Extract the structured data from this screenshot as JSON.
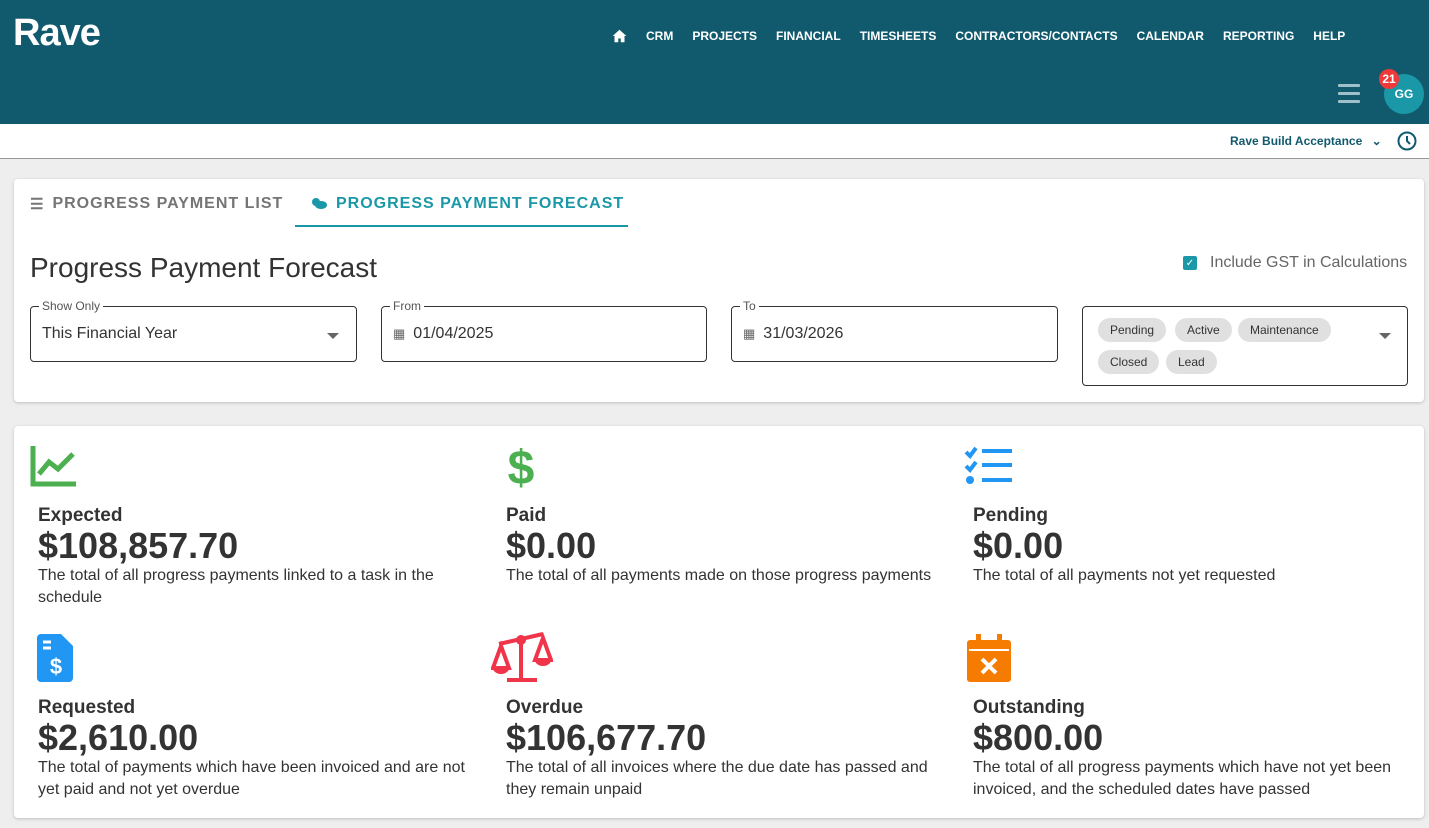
{
  "app": {
    "logo": "Rave"
  },
  "nav": {
    "items": [
      "CRM",
      "PROJECTS",
      "FINANCIAL",
      "TIMESHEETS",
      "CONTRACTORS/CONTACTS",
      "CALENDAR",
      "REPORTING",
      "HELP"
    ]
  },
  "user": {
    "initials": "GG",
    "notifications": "21"
  },
  "company": {
    "name": "Rave Build Acceptance"
  },
  "tabs": [
    {
      "label": "PROGRESS PAYMENT LIST",
      "active": false
    },
    {
      "label": "PROGRESS PAYMENT FORECAST",
      "active": true
    }
  ],
  "page": {
    "title": "Progress Payment Forecast",
    "gst_label": "Include GST in Calculations",
    "gst_checked": true
  },
  "filters": {
    "show_only": {
      "label": "Show Only",
      "value": "This Financial Year"
    },
    "from": {
      "label": "From",
      "value": "01/04/2025"
    },
    "to": {
      "label": "To",
      "value": "31/03/2026"
    },
    "statuses": [
      "Pending",
      "Active",
      "Maintenance",
      "Closed",
      "Lead"
    ]
  },
  "colors": {
    "header": "#115a6e",
    "accent": "#1b98a8",
    "green": "#4caf50",
    "blue": "#2196f3",
    "red": "#f0344a",
    "orange": "#f57c00"
  },
  "stats": [
    {
      "title": "Expected",
      "value": "$108,857.70",
      "desc": "The total of all progress payments linked to a task in the schedule",
      "icon": "chart-line-icon"
    },
    {
      "title": "Paid",
      "value": "$0.00",
      "desc": "The total of all payments made on those progress payments",
      "icon": "dollar-icon"
    },
    {
      "title": "Pending",
      "value": "$0.00",
      "desc": "The total of all payments not yet requested",
      "icon": "checklist-icon"
    },
    {
      "title": "Requested",
      "value": "$2,610.00",
      "desc": "The total of payments which have been invoiced and are not yet paid and not yet overdue",
      "icon": "invoice-dollar-icon"
    },
    {
      "title": "Overdue",
      "value": "$106,677.70",
      "desc": "The total of all invoices where the due date has passed and they remain unpaid",
      "icon": "scale-icon"
    },
    {
      "title": "Outstanding",
      "value": "$800.00",
      "desc": "The total of all progress payments which have not yet been invoiced, and the scheduled dates have passed",
      "icon": "calendar-x-icon"
    }
  ]
}
